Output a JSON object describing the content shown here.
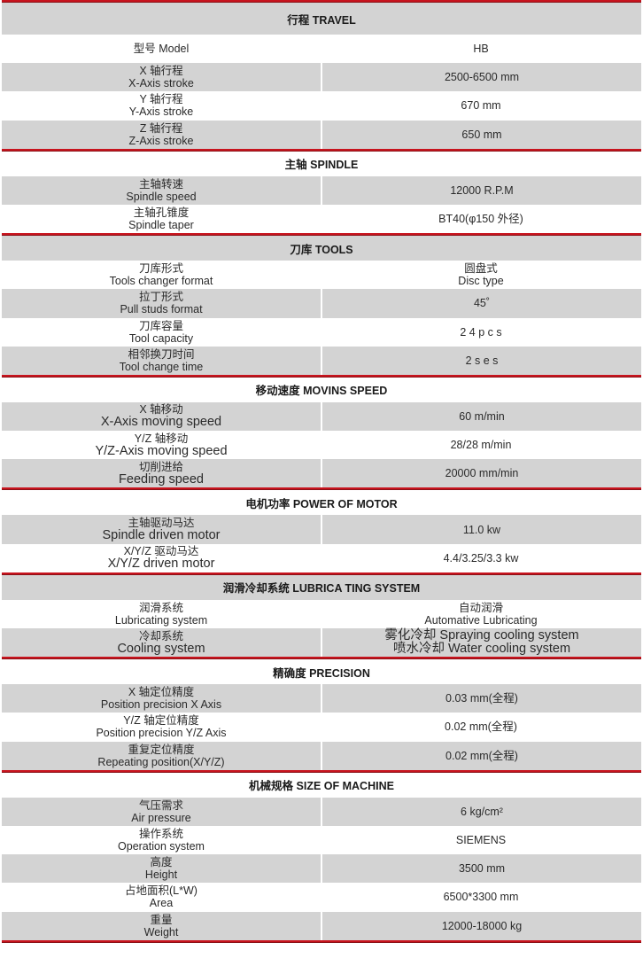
{
  "colors": {
    "accent_red": "#c8141e",
    "row_gray": "#d3d3d3"
  },
  "sections": [
    {
      "title": "行程  TRAVEL",
      "rows": [
        {
          "label": [
            "型号 Model"
          ],
          "value": [
            "HB"
          ]
        },
        {
          "label": [
            "X 轴行程",
            "X-Axis stroke"
          ],
          "value": [
            "2500-6500 mm"
          ]
        },
        {
          "label": [
            "Y 轴行程",
            "Y-Axis stroke"
          ],
          "value": [
            "670 mm"
          ]
        },
        {
          "label": [
            "Z 轴行程",
            "Z-Axis stroke"
          ],
          "value": [
            "650 mm"
          ]
        }
      ]
    },
    {
      "title": "主轴  SPINDLE",
      "rows": [
        {
          "label": [
            "主轴转速",
            "Spindle speed"
          ],
          "value": [
            "12000 R.P.M"
          ]
        },
        {
          "label": [
            "主轴孔锥度",
            "Spindle taper"
          ],
          "value": [
            "BT40(φ150 外径)"
          ]
        }
      ]
    },
    {
      "title": "刀库  TOOLS",
      "rows": [
        {
          "label": [
            "刀库形式",
            "Tools changer format"
          ],
          "value": [
            "圆盘式",
            "Disc type"
          ]
        },
        {
          "label": [
            "拉丁形式",
            "Pull studs format"
          ],
          "value": [
            "45˚"
          ]
        },
        {
          "label": [
            "刀库容量",
            "Tool capacity"
          ],
          "value": [
            "2 4 p c s"
          ]
        },
        {
          "label": [
            "相邻换刀时间",
            "Tool change time"
          ],
          "value": [
            "2 s e s"
          ]
        }
      ]
    },
    {
      "title": "移动速度  MOVINS SPEED",
      "rows": [
        {
          "label": [
            "X 轴移动",
            "X-Axis moving speed"
          ],
          "value": [
            "60 m/min"
          ],
          "big": true
        },
        {
          "label": [
            "Y/Z 轴移动",
            "Y/Z-Axis moving speed"
          ],
          "value": [
            "28/28 m/min"
          ],
          "big": true
        },
        {
          "label": [
            "切削进给",
            "Feeding speed"
          ],
          "value": [
            "20000 mm/min"
          ],
          "big": true
        }
      ]
    },
    {
      "title": "电机功率  POWER OF MOTOR",
      "rows": [
        {
          "label": [
            "主轴驱动马达",
            "Spindle driven motor"
          ],
          "value": [
            "11.0 kw"
          ],
          "big": true
        },
        {
          "label": [
            "X/Y/Z 驱动马达",
            "X/Y/Z driven motor"
          ],
          "value": [
            "4.4/3.25/3.3 kw"
          ],
          "big": true
        }
      ]
    },
    {
      "title": "润滑冷却系统  LUBRICA TING SYSTEM",
      "rows": [
        {
          "label": [
            "润滑系统",
            "Lubricating system"
          ],
          "value": [
            "自动润滑",
            "Automative Lubricating"
          ]
        },
        {
          "label": [
            "冷却系统",
            "Cooling system"
          ],
          "value": [
            "雾化冷却 Spraying cooling system",
            "喷水冷却      Water cooling system"
          ],
          "big": true
        }
      ]
    },
    {
      "title": "精确度   PRECISION",
      "rows": [
        {
          "label": [
            "X 轴定位精度",
            "Position precision X Axis"
          ],
          "value": [
            "0.03 mm(全程)"
          ]
        },
        {
          "label": [
            "Y/Z 轴定位精度",
            "Position precision Y/Z Axis"
          ],
          "value": [
            "0.02 mm(全程)"
          ]
        },
        {
          "label": [
            "重复定位精度",
            "Repeating position(X/Y/Z)"
          ],
          "value": [
            "0.02 mm(全程)"
          ]
        }
      ]
    },
    {
      "title": "机械规格   SIZE OF MACHINE",
      "rows": [
        {
          "label": [
            "气压需求",
            "Air pressure"
          ],
          "value": [
            "6 kg/cm²"
          ]
        },
        {
          "label": [
            "操作系统",
            "Operation system"
          ],
          "value": [
            "SIEMENS"
          ]
        },
        {
          "label": [
            "高度",
            "Height"
          ],
          "value": [
            "3500 mm"
          ]
        },
        {
          "label": [
            "占地面积(L*W)",
            "Area"
          ],
          "value": [
            "6500*3300 mm"
          ]
        },
        {
          "label": [
            "重量",
            "Weight"
          ],
          "value": [
            "12000-18000 kg"
          ]
        }
      ]
    }
  ]
}
